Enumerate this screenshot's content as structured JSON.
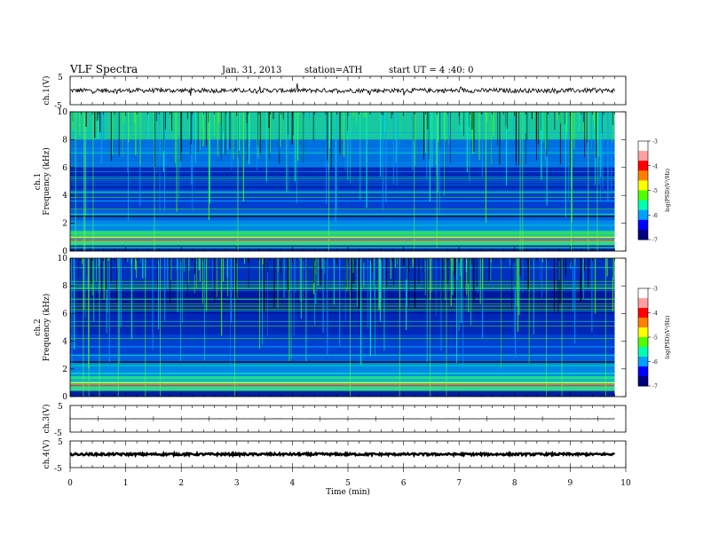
{
  "header": {
    "title": "VLF Spectra",
    "date": "Jan. 31, 2013",
    "station": "station=ATH",
    "start": "start UT = 4 :40: 0"
  },
  "chart_data": {
    "type": "heatmap",
    "xlabel": "Time (min)",
    "xlim": [
      0,
      10
    ],
    "x_ticks": [
      "0",
      "1",
      "2",
      "3",
      "4",
      "5",
      "6",
      "7",
      "8",
      "9",
      "10"
    ],
    "data_end_min": 9.8,
    "waveform_panels": [
      {
        "id": "ch1",
        "ylabel": "ch.1(V)",
        "y_ticks": [
          "5",
          "-5"
        ],
        "ylim": [
          -5,
          5
        ],
        "baseline_v": 0,
        "noise_amp_v": 0.8
      },
      {
        "id": "ch3",
        "ylabel": "ch.3(V)",
        "y_ticks": [
          "5",
          "-5"
        ],
        "ylim": [
          -5,
          5
        ],
        "baseline_v": 0,
        "noise_amp_v": 0.02
      },
      {
        "id": "ch4",
        "ylabel": "ch.4(V)",
        "y_ticks": [
          "5",
          "-5"
        ],
        "ylim": [
          -5,
          5
        ],
        "baseline_v": 0,
        "noise_amp_v": 0.4
      }
    ],
    "spectrogram_panels": [
      {
        "id": "ch1",
        "ylabel_top": "ch.1",
        "ylabel": "Frequency (kHz)",
        "ylim": [
          0,
          10
        ],
        "y_ticks": [
          "0",
          "2",
          "4",
          "6",
          "8",
          "10"
        ]
      },
      {
        "id": "ch2",
        "ylabel_top": "ch.2",
        "ylabel": "Frequency (kHz)",
        "ylim": [
          0,
          10
        ],
        "y_ticks": [
          "0",
          "2",
          "4",
          "6",
          "8",
          "10"
        ]
      }
    ],
    "colorbar": {
      "label": "log(PSD)(V²/Hz)",
      "range": [
        -7,
        -3
      ],
      "ticks": [
        "-3",
        "-4",
        "-5",
        "-6",
        "-7"
      ],
      "colors": [
        "#000080",
        "#0000ff",
        "#00a0ff",
        "#00ffb0",
        "#50ff00",
        "#ffff00",
        "#ff8000",
        "#ff0000",
        "#ffa0a0",
        "#ffffff"
      ]
    }
  }
}
